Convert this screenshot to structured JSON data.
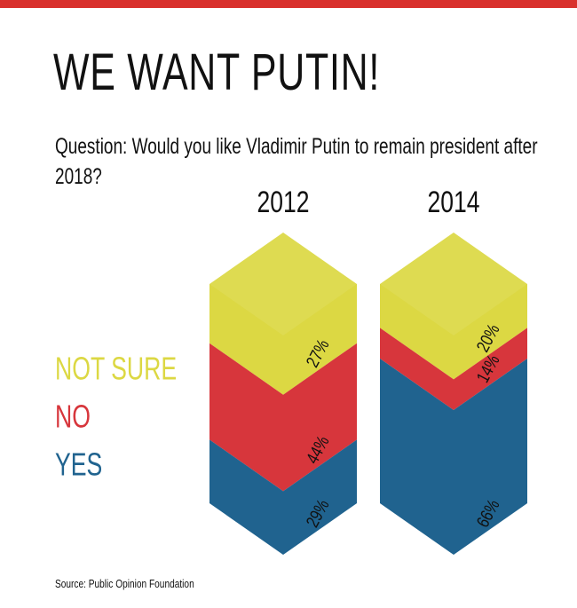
{
  "chart_data": {
    "type": "stacked-prism",
    "title": "WE WANT PUTIN!",
    "subtitle": "Question: Would you like Vladimir Putin to remain president after 2018?",
    "source": "Source: Public Opinion Foundation",
    "categories": [
      "2012",
      "2014"
    ],
    "series": [
      {
        "name": "NOT SURE",
        "color": "#dcd843",
        "values": [
          27,
          20
        ],
        "value_labels": [
          "27%",
          "20%"
        ]
      },
      {
        "name": "NO",
        "color": "#d7363c",
        "values": [
          44,
          14
        ],
        "value_labels": [
          "44%",
          "14%"
        ]
      },
      {
        "name": "YES",
        "color": "#20638f",
        "values": [
          29,
          66
        ],
        "value_labels": [
          "29%",
          "66%"
        ]
      }
    ]
  }
}
